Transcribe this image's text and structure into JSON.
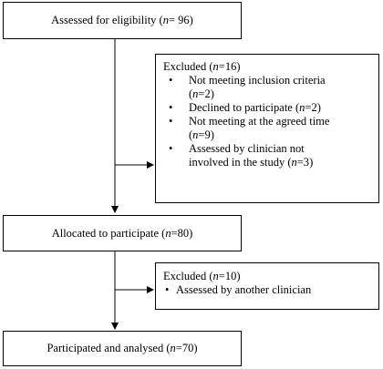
{
  "boxes": {
    "assessed": {
      "label": "Assessed for eligibility",
      "n_label": "n",
      "n_value": "= 96"
    },
    "allocated": {
      "label": "Allocated to participate",
      "n_label": "n",
      "n_value": "=80"
    },
    "participated": {
      "label": "Participated and analysed",
      "n_label": "n",
      "n_value": "=70"
    }
  },
  "excluded_first": {
    "title": "Excluded",
    "n_label": "n",
    "n_value": "=16",
    "items": [
      {
        "line1": "Not meeting inclusion criteria",
        "n_label": "n",
        "n_value": "=2"
      },
      {
        "line1": "Declined to participate",
        "n_label": "n",
        "n_value": "=2"
      },
      {
        "line1": "Not meeting at the agreed time",
        "n_label": "n",
        "n_value": "=9"
      },
      {
        "line1": "Assessed by clinician not",
        "line2": "involved in the study",
        "n_label": "n",
        "n_value": "=3"
      }
    ]
  },
  "excluded_second": {
    "title": "Excluded",
    "n_label": "n",
    "n_value": "=10",
    "items": [
      {
        "line1": "Assessed by another clinician"
      }
    ]
  }
}
